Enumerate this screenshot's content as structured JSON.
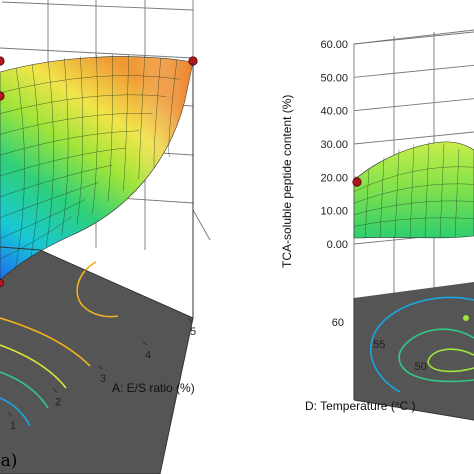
{
  "chart_data": [
    {
      "type": "surface",
      "panel_label": "(a)",
      "x": {
        "label": "A: E/S ratio (%)",
        "ticks": [
          "1",
          "2",
          "3",
          "4",
          "5"
        ],
        "range": [
          1,
          5
        ]
      },
      "colors": {
        "low": "#1a6cf0",
        "mid": "#9fe53a",
        "high": "#e66a1e",
        "floor": "#555555",
        "design_point": "#b3151d"
      }
    },
    {
      "type": "surface",
      "x": {
        "label": "D: Temperature (°C )",
        "ticks": [
          "60",
          "55",
          "50"
        ],
        "range": [
          60,
          50
        ]
      },
      "z": {
        "label": "TCA-soluble peptide content (%)",
        "ticks": [
          "0.00",
          "10.00",
          "20.00",
          "30.00",
          "40.00",
          "50.00",
          "60.00"
        ],
        "range": [
          0,
          60
        ]
      },
      "design_point_z": 19
    }
  ]
}
